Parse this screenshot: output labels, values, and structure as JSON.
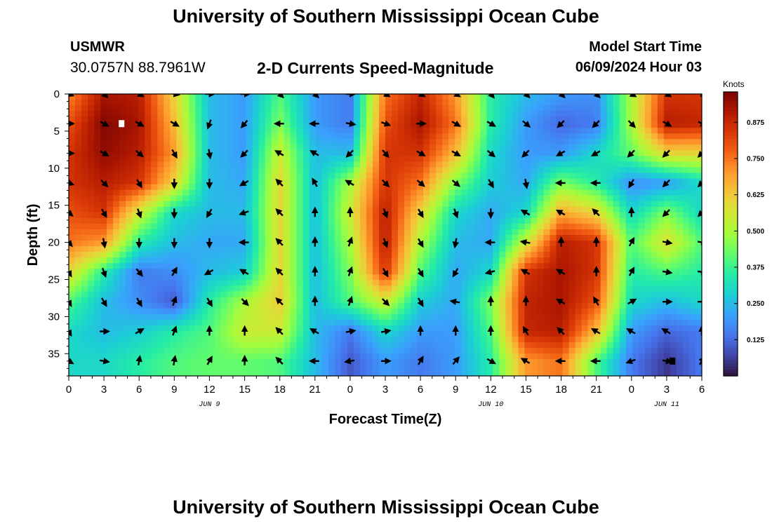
{
  "header": {
    "title": "University of Southern Mississippi Ocean Cube",
    "station": "USMWR",
    "coordinates": "30.0757N  88.7961W",
    "plot_title": "2-D Currents Speed-Magnitude",
    "model_label": "Model Start Time",
    "model_time": "06/09/2024 Hour 03"
  },
  "footer": {
    "title": "University of Southern Mississippi Ocean Cube"
  },
  "colors": {
    "colormap": [
      "#30123b",
      "#4145ab",
      "#4675ed",
      "#39a2fc",
      "#1bcfd4",
      "#24eca6",
      "#61fc6c",
      "#a4fc3b",
      "#d1e834",
      "#f3c63a",
      "#fe9b2d",
      "#f36315",
      "#d93806",
      "#b11901",
      "#7a0402"
    ]
  },
  "chart_data": {
    "type": "heatmap",
    "title": "2-D Currents Speed-Magnitude",
    "xlabel": "Forecast Time(Z)",
    "ylabel": "Depth (ft)",
    "x_tick_labels": [
      "0",
      "3",
      "6",
      "9",
      "12",
      "15",
      "18",
      "21",
      "0",
      "3",
      "6",
      "9",
      "12",
      "15",
      "18",
      "21",
      "0",
      "3",
      "6"
    ],
    "date_labels": [
      {
        "label": "JUN 9",
        "hour": 12
      },
      {
        "label": "JUN 10",
        "hour": 36
      },
      {
        "label": "JUN 11",
        "hour": 51
      }
    ],
    "xlim": [
      0,
      54
    ],
    "ylim": [
      0,
      38
    ],
    "y_ticks": [
      0,
      5,
      10,
      15,
      20,
      25,
      30,
      35
    ],
    "colorbar": {
      "title": "Knots",
      "ticks": [
        "0.125",
        "0.250",
        "0.375",
        "0.500",
        "0.625",
        "0.750",
        "0.875"
      ],
      "range": [
        0,
        0.98
      ]
    },
    "hours": [
      0,
      3,
      6,
      9,
      12,
      15,
      18,
      21,
      24,
      27,
      30,
      33,
      36,
      39,
      42,
      45,
      48,
      51,
      54
    ],
    "depths": [
      0,
      4,
      8,
      12,
      16,
      20,
      24,
      28,
      32,
      36
    ],
    "speed_knots": [
      [
        0.72,
        0.92,
        0.9,
        0.6,
        0.25,
        0.2,
        0.4,
        0.2,
        0.15,
        0.75,
        0.88,
        0.7,
        0.35,
        0.25,
        0.2,
        0.18,
        0.5,
        0.85,
        0.85
      ],
      [
        0.8,
        0.97,
        0.92,
        0.65,
        0.25,
        0.2,
        0.45,
        0.2,
        0.15,
        0.8,
        0.92,
        0.75,
        0.35,
        0.2,
        0.12,
        0.15,
        0.5,
        0.9,
        0.88
      ],
      [
        0.85,
        0.95,
        0.9,
        0.7,
        0.25,
        0.2,
        0.55,
        0.25,
        0.25,
        0.85,
        0.85,
        0.65,
        0.3,
        0.2,
        0.2,
        0.3,
        0.42,
        0.6,
        0.6
      ],
      [
        0.85,
        0.9,
        0.85,
        0.6,
        0.25,
        0.22,
        0.6,
        0.25,
        0.5,
        0.85,
        0.75,
        0.45,
        0.28,
        0.22,
        0.45,
        0.35,
        0.18,
        0.2,
        0.3
      ],
      [
        0.8,
        0.85,
        0.55,
        0.3,
        0.25,
        0.25,
        0.6,
        0.25,
        0.55,
        0.9,
        0.6,
        0.3,
        0.22,
        0.3,
        0.68,
        0.6,
        0.3,
        0.45,
        0.3
      ],
      [
        0.75,
        0.7,
        0.35,
        0.25,
        0.22,
        0.22,
        0.6,
        0.25,
        0.5,
        0.9,
        0.5,
        0.25,
        0.22,
        0.55,
        0.9,
        0.85,
        0.4,
        0.58,
        0.4
      ],
      [
        0.6,
        0.35,
        0.15,
        0.18,
        0.25,
        0.28,
        0.6,
        0.25,
        0.45,
        0.85,
        0.4,
        0.22,
        0.3,
        0.85,
        0.92,
        0.85,
        0.35,
        0.4,
        0.35
      ],
      [
        0.4,
        0.25,
        0.18,
        0.1,
        0.35,
        0.5,
        0.62,
        0.25,
        0.4,
        0.55,
        0.28,
        0.22,
        0.45,
        0.88,
        0.92,
        0.8,
        0.3,
        0.25,
        0.3
      ],
      [
        0.3,
        0.25,
        0.28,
        0.35,
        0.4,
        0.55,
        0.55,
        0.25,
        0.15,
        0.3,
        0.2,
        0.2,
        0.4,
        0.88,
        0.9,
        0.65,
        0.2,
        0.12,
        0.15
      ],
      [
        0.3,
        0.3,
        0.35,
        0.4,
        0.42,
        0.42,
        0.4,
        0.25,
        0.1,
        0.2,
        0.15,
        0.2,
        0.35,
        0.7,
        0.75,
        0.4,
        0.15,
        0.05,
        0.15
      ]
    ],
    "direction_deg": [
      [
        110,
        135,
        120,
        100,
        90,
        90,
        135,
        135,
        90,
        120,
        120,
        120,
        140,
        135,
        135,
        135,
        120,
        120,
        120
      ],
      [
        90,
        120,
        120,
        120,
        200,
        220,
        270,
        270,
        100,
        110,
        90,
        120,
        120,
        130,
        225,
        225,
        135,
        120,
        120
      ],
      [
        90,
        120,
        130,
        150,
        170,
        225,
        300,
        300,
        225,
        140,
        120,
        120,
        130,
        225,
        240,
        240,
        225,
        225,
        225
      ],
      [
        110,
        135,
        150,
        180,
        180,
        240,
        315,
        330,
        300,
        135,
        130,
        130,
        150,
        170,
        270,
        270,
        210,
        225,
        225
      ],
      [
        130,
        150,
        160,
        180,
        210,
        250,
        315,
        0,
        0,
        160,
        150,
        160,
        180,
        300,
        300,
        315,
        0,
        225,
        225
      ],
      [
        140,
        170,
        180,
        180,
        180,
        270,
        315,
        0,
        20,
        160,
        150,
        190,
        270,
        280,
        0,
        0,
        30,
        100,
        100
      ],
      [
        150,
        160,
        140,
        30,
        240,
        300,
        315,
        0,
        20,
        150,
        150,
        210,
        255,
        300,
        300,
        0,
        30,
        100,
        100
      ],
      [
        150,
        150,
        150,
        20,
        150,
        135,
        315,
        0,
        20,
        135,
        150,
        280,
        0,
        0,
        300,
        330,
        60,
        90,
        90
      ],
      [
        150,
        90,
        60,
        20,
        0,
        0,
        315,
        300,
        80,
        80,
        0,
        0,
        0,
        330,
        315,
        300,
        300,
        300,
        0
      ],
      [
        120,
        100,
        10,
        10,
        30,
        0,
        315,
        270,
        260,
        90,
        30,
        40,
        120,
        300,
        270,
        270,
        250,
        100,
        30
      ]
    ],
    "markers": [
      {
        "hour": 4.5,
        "depth": 4,
        "color": "#ffffff"
      },
      {
        "hour": 51.5,
        "depth": 36,
        "color": "#000000"
      }
    ]
  }
}
